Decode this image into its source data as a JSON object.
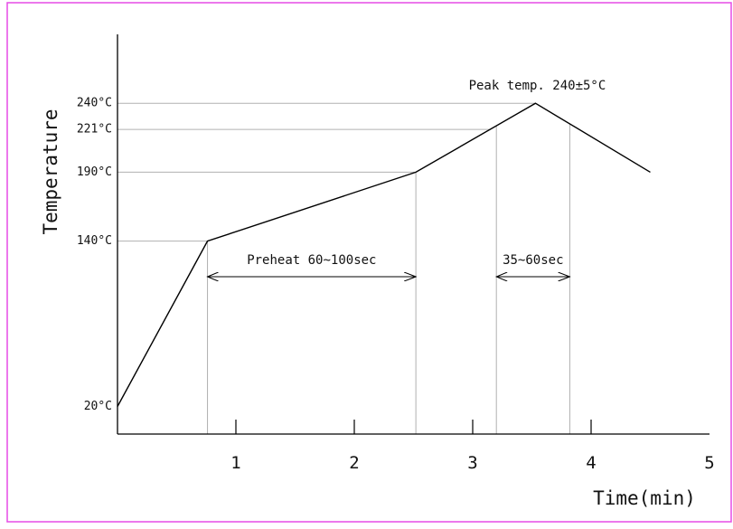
{
  "frame": {
    "border_color": "#e64ce6"
  },
  "chart_data": {
    "type": "line",
    "xlabel": "Time(min)",
    "ylabel": "Temperature",
    "x_ticks": [
      "1",
      "2",
      "3",
      "4",
      "5"
    ],
    "xlim": [
      0,
      5
    ],
    "ylim": [
      0,
      290
    ],
    "y_ticks": [
      {
        "value": 20,
        "label": "20°C"
      },
      {
        "value": 140,
        "label": "140°C"
      },
      {
        "value": 190,
        "label": "190°C"
      },
      {
        "value": 221,
        "label": "221°C"
      },
      {
        "value": 240,
        "label": "240°C"
      }
    ],
    "series": [
      {
        "color": "#000000",
        "points": [
          {
            "x": 0.0,
            "y": 20
          },
          {
            "x": 0.76,
            "y": 140
          },
          {
            "x": 2.52,
            "y": 190
          },
          {
            "x": 3.53,
            "y": 240
          },
          {
            "x": 4.5,
            "y": 190
          }
        ]
      }
    ],
    "reference_lines_color": "#b0b0b0",
    "annotations": [
      {
        "id": "peak",
        "text": "Peak temp. 240±5°C",
        "x": 3.53,
        "y": 240
      },
      {
        "id": "preheat",
        "text": "Preheat 60~100sec",
        "x_start": 0.76,
        "x_end": 2.52
      },
      {
        "id": "reflow",
        "text": "35~60sec",
        "x_start": 3.2,
        "x_end": 3.82
      }
    ]
  }
}
